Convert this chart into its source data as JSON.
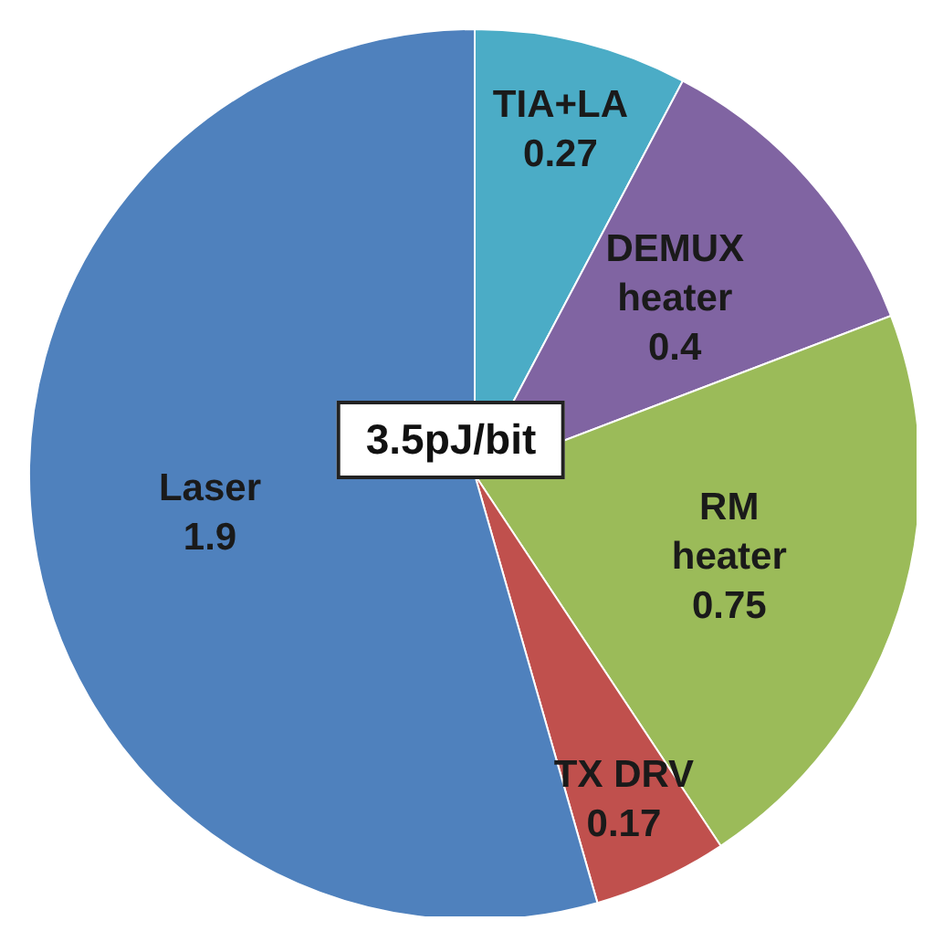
{
  "chart_data": {
    "type": "pie",
    "categories": [
      "TIA+LA",
      "DEMUX heater",
      "RM heater",
      "TX DRV",
      "Laser"
    ],
    "values": [
      0.27,
      0.4,
      0.75,
      0.17,
      1.9
    ],
    "colors": [
      "#4bacc6",
      "#8064a2",
      "#9bbb59",
      "#c0504d",
      "#4f81bd"
    ],
    "data_labels": true,
    "annotations": [
      "3.5pJ/bit"
    ]
  }
}
